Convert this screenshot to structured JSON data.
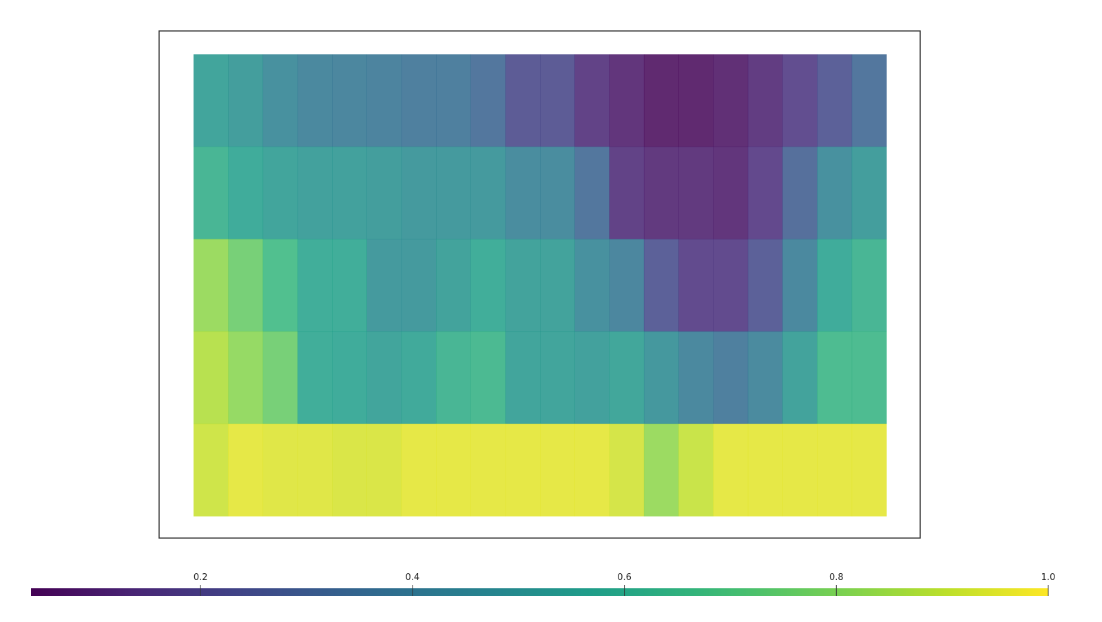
{
  "chart_data": {
    "type": "heatmap",
    "colormap": "viridis",
    "values": [
      [
        0.54,
        0.51,
        0.45,
        0.41,
        0.4,
        0.39,
        0.37,
        0.37,
        0.33,
        0.22,
        0.22,
        0.13,
        0.09,
        0.05,
        0.05,
        0.07,
        0.11,
        0.17,
        0.24,
        0.33
      ],
      [
        0.62,
        0.57,
        0.54,
        0.52,
        0.52,
        0.51,
        0.49,
        0.49,
        0.49,
        0.43,
        0.43,
        0.33,
        0.13,
        0.1,
        0.1,
        0.09,
        0.15,
        0.3,
        0.45,
        0.51
      ],
      [
        0.83,
        0.76,
        0.67,
        0.58,
        0.58,
        0.49,
        0.49,
        0.53,
        0.58,
        0.53,
        0.53,
        0.45,
        0.4,
        0.24,
        0.16,
        0.16,
        0.24,
        0.41,
        0.57,
        0.62
      ],
      [
        0.88,
        0.82,
        0.76,
        0.58,
        0.57,
        0.54,
        0.56,
        0.62,
        0.64,
        0.54,
        0.54,
        0.52,
        0.55,
        0.48,
        0.41,
        0.37,
        0.42,
        0.53,
        0.65,
        0.65
      ],
      [
        0.92,
        0.96,
        0.95,
        0.95,
        0.94,
        0.94,
        0.96,
        0.96,
        0.96,
        0.96,
        0.96,
        0.96,
        0.93,
        0.83,
        0.91,
        0.96,
        0.96,
        0.96,
        0.96,
        0.96
      ]
    ],
    "clim": [
      0.04,
      1.0
    ],
    "cticks": [
      0.2,
      0.4,
      0.6,
      0.8,
      {
        "value": 1.0,
        "label": "1.0"
      }
    ]
  }
}
